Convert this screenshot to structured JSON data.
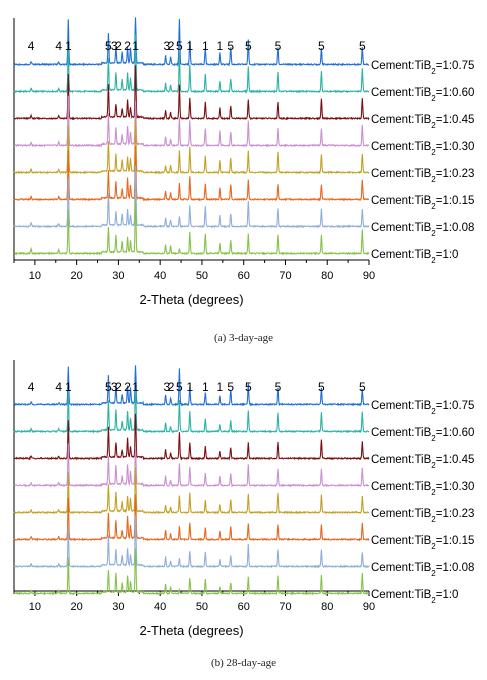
{
  "colors": {
    "Cement:TiB2=1:0.75": "#1f6fd6",
    "Cement:TiB2=1:0.60": "#2bb3a5",
    "Cement:TiB2=1:0.45": "#7a0f12",
    "Cement:TiB2=1:0.30": "#c990cf",
    "Cement:TiB2=1:0.23": "#c3a126",
    "Cement:TiB2=1:0.15": "#e76620",
    "Cement:TiB2=1:0.08": "#8eaedb",
    "Cement:TiB2=1:0": "#86c24a"
  },
  "chart_data": [
    {
      "type": "line",
      "caption": "(a)   3-day-age",
      "xlabel": "2-Theta (degrees)",
      "xlim": [
        5,
        90
      ],
      "xticks": [
        10,
        20,
        30,
        40,
        50,
        60,
        70,
        80,
        90
      ],
      "series": [
        {
          "name": "Cement:TiB2=1:0.75",
          "label_main": "Cement:TiB",
          "label_sub": "2",
          "label_end": "=1:0.75"
        },
        {
          "name": "Cement:TiB2=1:0.60",
          "label_main": "Cement:TiB",
          "label_sub": "2",
          "label_end": "=1:0.60"
        },
        {
          "name": "Cement:TiB2=1:0.45",
          "label_main": "Cement:TiB",
          "label_sub": "2",
          "label_end": "=1:0.45"
        },
        {
          "name": "Cement:TiB2=1:0.30",
          "label_main": "Cement:TiB",
          "label_sub": "2",
          "label_end": "=1:0.30"
        },
        {
          "name": "Cement:TiB2=1:0.23",
          "label_main": "Cement:TiB",
          "label_sub": "2",
          "label_end": "=1:0.23"
        },
        {
          "name": "Cement:TiB2=1:0.15",
          "label_main": "Cement:TiB",
          "label_sub": "2",
          "label_end": "=1:0.15"
        },
        {
          "name": "Cement:TiB2=1:0.08",
          "label_main": "Cement:TiB",
          "label_sub": "2",
          "label_end": "=1:0.08"
        },
        {
          "name": "Cement:TiB2=1:0",
          "label_main": "Cement:TiB",
          "label_sub": "2",
          "label_end": "=1:0"
        }
      ],
      "peaks": [
        {
          "x": 9.1,
          "h": 0.07
        },
        {
          "x": 15.7,
          "h": 0.06
        },
        {
          "x": 18.0,
          "h": 1.0
        },
        {
          "x": 27.6,
          "h": 0.55
        },
        {
          "x": 29.4,
          "h": 0.3
        },
        {
          "x": 30.9,
          "h": 0.2
        },
        {
          "x": 32.2,
          "h": 0.35
        },
        {
          "x": 32.9,
          "h": 0.25
        },
        {
          "x": 34.1,
          "h": 1.0
        },
        {
          "x": 41.3,
          "h": 0.15
        },
        {
          "x": 42.5,
          "h": 0.15
        },
        {
          "x": 44.6,
          "h": 0.9
        },
        {
          "x": 47.1,
          "h": 0.45
        },
        {
          "x": 50.8,
          "h": 0.4
        },
        {
          "x": 54.3,
          "h": 0.25
        },
        {
          "x": 56.9,
          "h": 0.3
        },
        {
          "x": 61.1,
          "h": 0.45
        },
        {
          "x": 68.2,
          "h": 0.35
        },
        {
          "x": 78.6,
          "h": 0.35
        },
        {
          "x": 88.4,
          "h": 0.4
        }
      ],
      "phase_labels": [
        {
          "text": "4",
          "x": 9.1
        },
        {
          "text": "4",
          "x": 15.7
        },
        {
          "text": "1",
          "x": 18.0
        },
        {
          "text": "5",
          "x": 27.6
        },
        {
          "text": "3",
          "x": 29.0
        },
        {
          "text": "2",
          "x": 30.0
        },
        {
          "text": "2",
          "x": 32.2
        },
        {
          "text": "1",
          "x": 34.1
        },
        {
          "text": "3",
          "x": 41.6
        },
        {
          "text": "2",
          "x": 42.6
        },
        {
          "text": "5",
          "x": 44.6
        },
        {
          "text": "1",
          "x": 47.1
        },
        {
          "text": "1",
          "x": 50.8
        },
        {
          "text": "1",
          "x": 54.3
        },
        {
          "text": "5",
          "x": 56.9
        },
        {
          "text": "5",
          "x": 61.1
        },
        {
          "text": "5",
          "x": 68.2
        },
        {
          "text": "5",
          "x": 78.6
        },
        {
          "text": "5",
          "x": 88.4
        }
      ]
    },
    {
      "type": "line",
      "caption": "(b) 28-day-age",
      "xlabel": "2-Theta (degrees)",
      "xlim": [
        5,
        90
      ],
      "xticks": [
        10,
        20,
        30,
        40,
        50,
        60,
        70,
        80,
        90
      ],
      "series": [
        {
          "name": "Cement:TiB2=1:0.75",
          "label_main": "Cement:TiB",
          "label_sub": "2",
          "label_end": "=1:0.75"
        },
        {
          "name": "Cement:TiB2=1:0.60",
          "label_main": "Cement:TiB",
          "label_sub": "2",
          "label_end": "=1:0.60"
        },
        {
          "name": "Cement:TiB2=1:0.45",
          "label_main": "Cement:TiB",
          "label_sub": "2",
          "label_end": "=1:0.45"
        },
        {
          "name": "Cement:TiB2=1:0.30",
          "label_main": "Cement:TiB",
          "label_sub": "2",
          "label_end": "=1:0.30"
        },
        {
          "name": "Cement:TiB2=1:0.23",
          "label_main": "Cement:TiB",
          "label_sub": "2",
          "label_end": "=1:0.23"
        },
        {
          "name": "Cement:TiB2=1:0.15",
          "label_main": "Cement:TiB",
          "label_sub": "2",
          "label_end": "=1:0.15"
        },
        {
          "name": "Cement:TiB2=1:0.08",
          "label_main": "Cement:TiB",
          "label_sub": "2",
          "label_end": "=1:0.08"
        },
        {
          "name": "Cement:TiB2=1:0",
          "label_main": "Cement:TiB",
          "label_sub": "2",
          "label_end": "=1:0"
        }
      ],
      "peaks": [
        {
          "x": 9.1,
          "h": 0.07
        },
        {
          "x": 15.7,
          "h": 0.06
        },
        {
          "x": 18.0,
          "h": 1.0
        },
        {
          "x": 27.6,
          "h": 0.6
        },
        {
          "x": 29.4,
          "h": 0.4
        },
        {
          "x": 30.9,
          "h": 0.2
        },
        {
          "x": 32.2,
          "h": 0.45
        },
        {
          "x": 32.9,
          "h": 0.3
        },
        {
          "x": 34.1,
          "h": 1.0
        },
        {
          "x": 41.3,
          "h": 0.2
        },
        {
          "x": 42.5,
          "h": 0.15
        },
        {
          "x": 44.6,
          "h": 0.85
        },
        {
          "x": 47.1,
          "h": 0.4
        },
        {
          "x": 50.8,
          "h": 0.35
        },
        {
          "x": 54.3,
          "h": 0.2
        },
        {
          "x": 56.9,
          "h": 0.3
        },
        {
          "x": 61.1,
          "h": 0.45
        },
        {
          "x": 68.2,
          "h": 0.4
        },
        {
          "x": 78.6,
          "h": 0.4
        },
        {
          "x": 88.4,
          "h": 0.4
        }
      ],
      "phase_labels": [
        {
          "text": "4",
          "x": 9.1
        },
        {
          "text": "4",
          "x": 15.7
        },
        {
          "text": "1",
          "x": 18.0
        },
        {
          "text": "5",
          "x": 27.6
        },
        {
          "text": "3",
          "x": 29.0
        },
        {
          "text": "2",
          "x": 30.0
        },
        {
          "text": "2",
          "x": 32.2
        },
        {
          "text": "1",
          "x": 34.1
        },
        {
          "text": "3",
          "x": 41.6
        },
        {
          "text": "2",
          "x": 42.6
        },
        {
          "text": "5",
          "x": 44.6
        },
        {
          "text": "1",
          "x": 47.1
        },
        {
          "text": "1",
          "x": 50.8
        },
        {
          "text": "1",
          "x": 54.3
        },
        {
          "text": "5",
          "x": 56.9
        },
        {
          "text": "5",
          "x": 61.1
        },
        {
          "text": "5",
          "x": 68.2
        },
        {
          "text": "5",
          "x": 78.6
        },
        {
          "text": "5",
          "x": 88.4
        }
      ]
    }
  ]
}
